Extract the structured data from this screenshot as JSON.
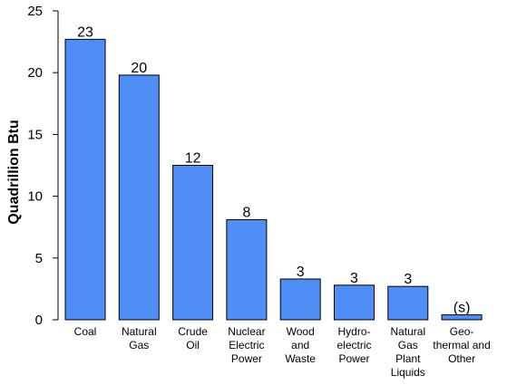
{
  "chart_data": {
    "type": "bar",
    "title": "",
    "xlabel": "",
    "ylabel": "Quadrillion Btu",
    "ylim": [
      0,
      25
    ],
    "yticks": [
      0,
      5,
      10,
      15,
      20,
      25
    ],
    "grid": false,
    "legend": "none",
    "bar_color": "#4f8ef7",
    "bar_edge_color": "#000000",
    "categories": [
      [
        "Coal"
      ],
      [
        "Natural",
        "Gas"
      ],
      [
        "Crude",
        "Oil"
      ],
      [
        "Nuclear",
        "Electric",
        "Power"
      ],
      [
        "Wood",
        "and",
        "Waste"
      ],
      [
        "Hydro-",
        "electric",
        "Power"
      ],
      [
        "Natural",
        "Gas",
        "Plant",
        "Liquids"
      ],
      [
        "Geo-",
        "thermal and",
        "Other"
      ]
    ],
    "values": [
      22.7,
      19.8,
      12.5,
      8.1,
      3.3,
      2.8,
      2.7,
      0.4
    ],
    "value_labels": [
      "23",
      "20",
      "12",
      "8",
      "3",
      "3",
      "3",
      "(s)"
    ]
  }
}
